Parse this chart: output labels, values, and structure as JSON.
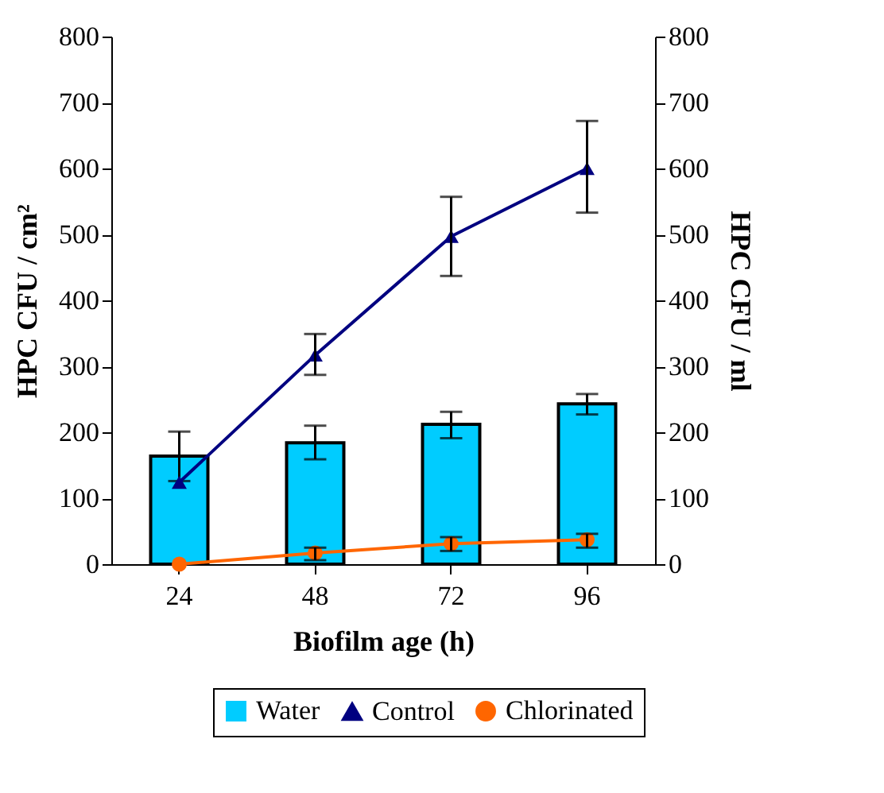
{
  "chart_data": {
    "type": "line",
    "xlabel": "Biofilm age (h)",
    "ylabel": "HPC CFU / cm²",
    "y2label": "HPC CFU / ml",
    "categories": [
      "24",
      "48",
      "72",
      "96"
    ],
    "ylim": [
      0,
      800
    ],
    "yticks": [
      0,
      100,
      200,
      300,
      400,
      500,
      600,
      700,
      800
    ],
    "y2lim": [
      0,
      800
    ],
    "y2ticks": [
      0,
      100,
      200,
      300,
      400,
      500,
      600,
      700,
      800
    ],
    "grid": false,
    "legend": "bottom",
    "series": [
      {
        "name": "Water",
        "type": "bar",
        "axis": "y2",
        "color": "#00ccff",
        "values": [
          164,
          184,
          212,
          243
        ],
        "errors": [
          [
            126,
            201
          ],
          [
            159,
            210
          ],
          [
            191,
            231
          ],
          [
            227,
            258
          ]
        ]
      },
      {
        "name": "Control",
        "color": "#000080",
        "marker": "triangle",
        "line_style": "solid",
        "values": [
          124,
          317,
          497,
          600
        ],
        "errors": [
          null,
          [
            287,
            349
          ],
          [
            437,
            557
          ],
          [
            533,
            672
          ]
        ]
      },
      {
        "name": "Chlorinated",
        "color": "#ff6600",
        "marker": "circle",
        "line_style": "solid",
        "values": [
          0,
          17,
          31,
          37
        ],
        "errors": [
          null,
          [
            6,
            25
          ],
          [
            20,
            41
          ],
          [
            25,
            46
          ]
        ]
      }
    ]
  }
}
